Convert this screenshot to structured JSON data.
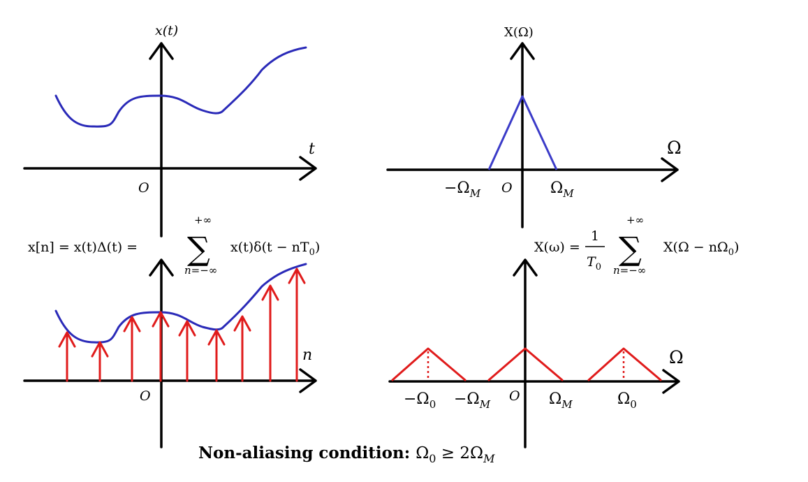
{
  "panel_time": {
    "y_axis_label": "x(t)",
    "x_axis_label": "t",
    "origin_label": "O"
  },
  "panel_spectrum": {
    "y_axis_label": "X(Ω)",
    "x_axis_label": "Ω",
    "origin_label": "O",
    "neg_band_label": "−Ω",
    "neg_band_sub": "M",
    "pos_band_label": "Ω",
    "pos_band_sub": "M"
  },
  "panel_sampled": {
    "formula_lhs": "x[n] = x(t)Δ(t) =",
    "sum_top": "+∞",
    "sum_symbol": "∑",
    "sum_bottom": "n=−∞",
    "formula_rhs": "x(t)δ(t − nT",
    "formula_rhs_sub": "0",
    "formula_rhs_end": ")",
    "x_axis_label": "n",
    "origin_label": "O",
    "curve_color": "#2a2ab8",
    "impulse_color": "#e01b1b"
  },
  "panel_periodic": {
    "formula_lhs": "X(ω) =",
    "frac_num": "1",
    "frac_den": "T",
    "frac_den_sub": "0",
    "sum_top": "+∞",
    "sum_symbol": "∑",
    "sum_bottom": "n=−∞",
    "formula_rhs": "X(Ω − nΩ",
    "formula_rhs_sub": "0",
    "formula_rhs_end": ")",
    "x_axis_label": "Ω",
    "origin_label": "O",
    "ticks": [
      {
        "main": "−Ω",
        "sub": "0"
      },
      {
        "main": "−Ω",
        "sub": "M"
      },
      {
        "main": "Ω",
        "sub": "M"
      },
      {
        "main": "Ω",
        "sub": "0"
      }
    ],
    "replica_color": "#e01b1b"
  },
  "footer": {
    "text": "Non-aliasing condition: ",
    "math_a": "Ω",
    "math_a_sub": "0",
    "math_op": " ≥ 2Ω",
    "math_b_sub": "M"
  }
}
